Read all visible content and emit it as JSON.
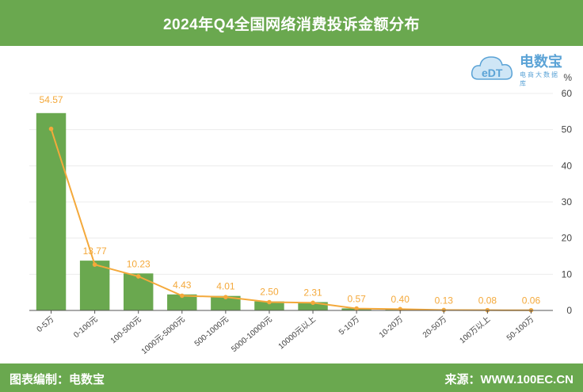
{
  "header": {
    "title": "2024年Q4全国网络消费投诉金额分布"
  },
  "logo": {
    "name": "电数宝",
    "tagline": "电商大数据库",
    "mark": "eDT"
  },
  "footer": {
    "left": "图表编制：电数宝",
    "right": "来源：WWW.100EC.CN"
  },
  "colors": {
    "bar": "#6aa84f",
    "line": "#f4a93b",
    "label": "#f4a93b",
    "header": "#6aa84f"
  },
  "chart_data": {
    "type": "bar",
    "categories": [
      "0-5万",
      "0-100元",
      "100-500元",
      "1000元-5000元",
      "500-1000元",
      "5000-10000元",
      "10000元以上",
      "5-10万",
      "10-20万",
      "20-50万",
      "100万以上",
      "50-100万"
    ],
    "values": [
      54.57,
      13.77,
      10.23,
      4.43,
      4.01,
      2.5,
      2.31,
      0.57,
      0.4,
      0.13,
      0.08,
      0.06
    ],
    "data_labels": [
      "54.57",
      "13.77",
      "10.23",
      "4.43",
      "4.01",
      "2.50",
      "2.31",
      "0.57",
      "0.40",
      "0.13",
      "0.08",
      "0.06"
    ],
    "overlay": "line",
    "y_axis_position": "right",
    "yunit": "%",
    "ylim": [
      0,
      60
    ],
    "yticks": [
      "0",
      "10",
      "20",
      "30",
      "40",
      "50",
      "60"
    ],
    "grid": true
  }
}
